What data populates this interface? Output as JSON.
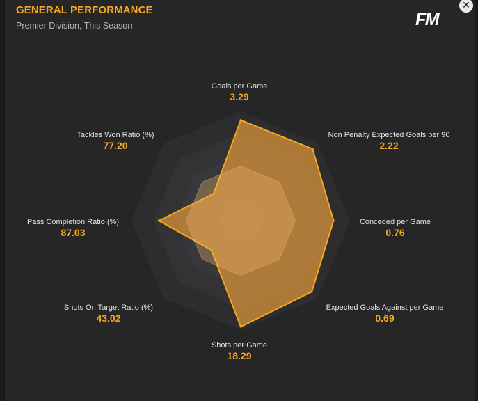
{
  "header": {
    "title": "GENERAL PERFORMANCE",
    "subtitle": "Premier Division, This Season",
    "logo_text": "FM",
    "close_icon": "close-icon"
  },
  "colors": {
    "accent": "#f5a623",
    "panel_background": "#262626",
    "label_text": "#e4e4e4",
    "radar_fill": "#d08e3a",
    "radar_inner_fill": "#e8b168"
  },
  "chart_data": {
    "type": "radar",
    "title": "",
    "axis_order": "clockwise-from-top",
    "metrics": [
      {
        "label": "Goals per Game",
        "value": "3.29",
        "percentile": 0.92
      },
      {
        "label": "Non Penalty Expected Goals per 90",
        "value": "2.22",
        "percentile": 0.93
      },
      {
        "label": "Conceded per Game",
        "value": "0.76",
        "percentile": 0.85
      },
      {
        "label": "Expected Goals Against per Game",
        "value": "0.69",
        "percentile": 0.92
      },
      {
        "label": "Shots per Game",
        "value": "18.29",
        "percentile": 0.97
      },
      {
        "label": "Shots On Target Ratio (%)",
        "value": "43.02",
        "percentile": 0.38
      },
      {
        "label": "Pass Completion Ratio (%)",
        "value": "87.03",
        "percentile": 0.75
      },
      {
        "label": "Tackles Won Ratio (%)",
        "value": "77.20",
        "percentile": 0.35
      }
    ],
    "inner_polygon_percentile": 0.5
  }
}
